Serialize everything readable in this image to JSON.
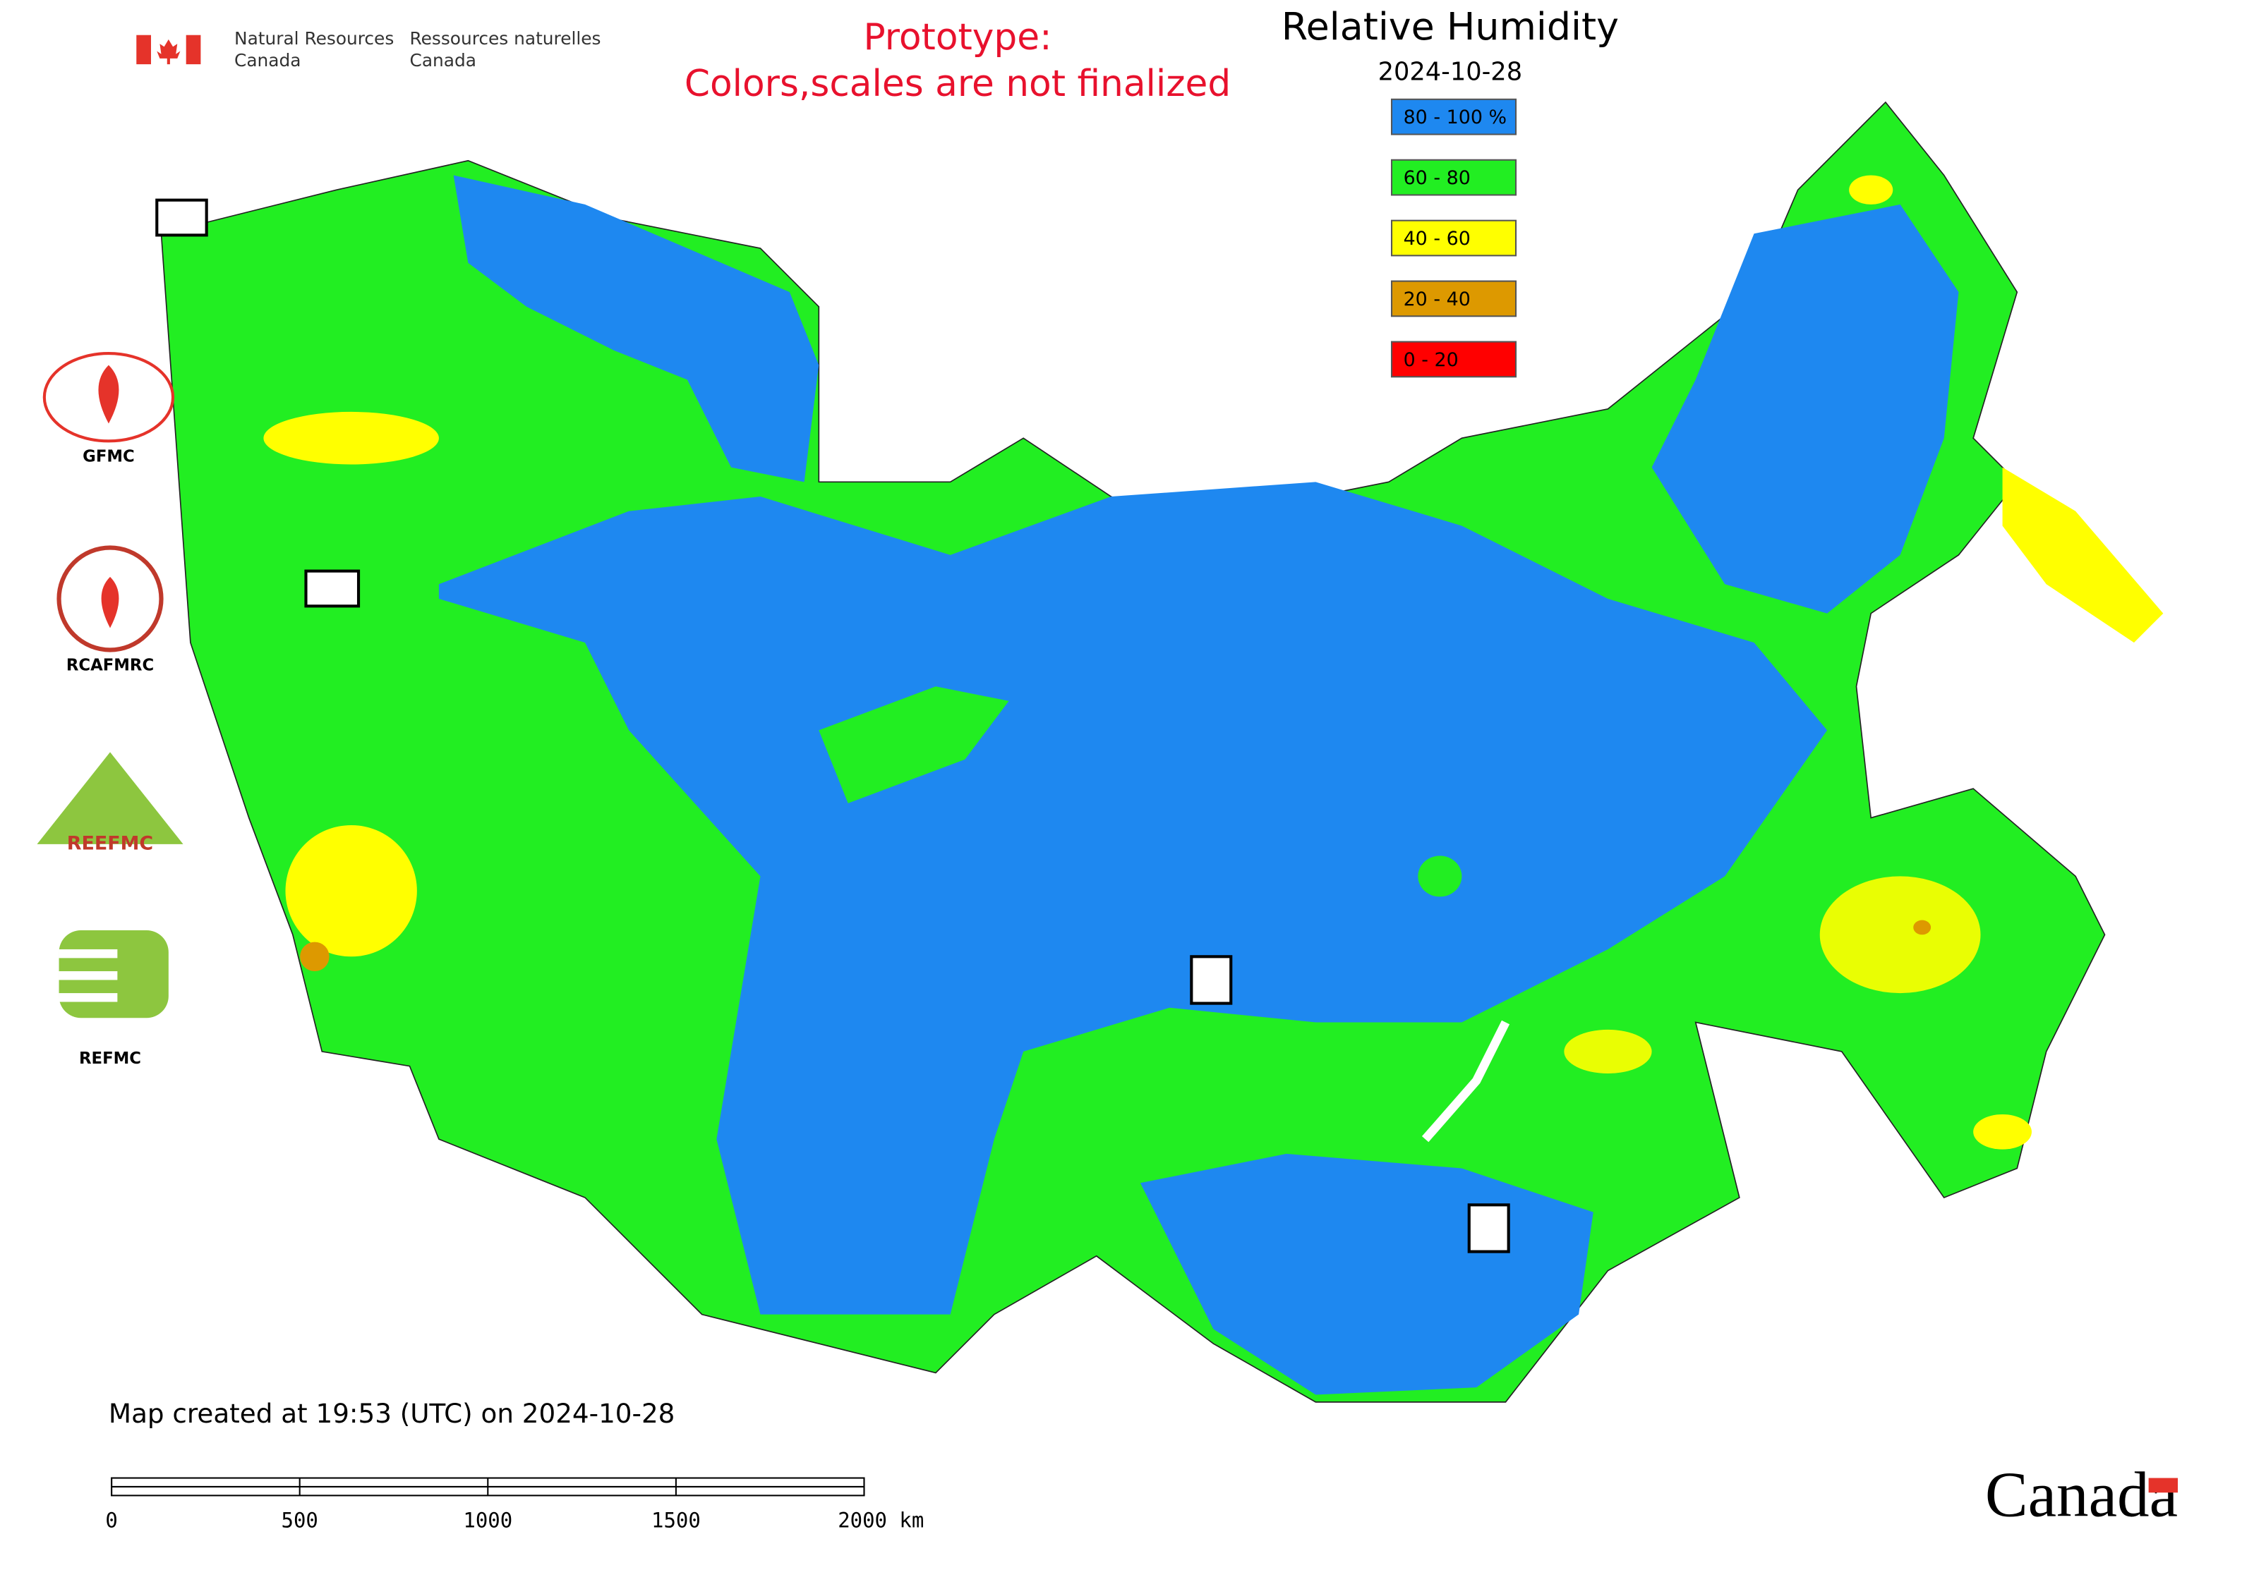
{
  "header": {
    "dept_en_1": "Natural Resources",
    "dept_en_2": "Canada",
    "dept_fr_1": "Ressources naturelles",
    "dept_fr_2": "Canada"
  },
  "notice": [
    "Prototype:",
    "Colors,scales are not finalized"
  ],
  "map": {
    "title": "Relative Humidity",
    "date": "2024-10-28",
    "legend": [
      {
        "label": "80 - 100 %",
        "color": "#1e88f0"
      },
      {
        "label": "60 - 80",
        "color": "#22ee22"
      },
      {
        "label": "40 - 60",
        "color": "#ffff00"
      },
      {
        "label": "20 - 40",
        "color": "#dd9900"
      },
      {
        "label": "0 - 20",
        "color": "#ff0000"
      }
    ]
  },
  "logos": [
    "GFMC",
    "RCAFMRC",
    "REEFMC",
    "REFMC"
  ],
  "footer": {
    "created": "Map created at 19:53 (UTC) on 2024-10-28",
    "scale_labels": [
      "0",
      "500",
      "1000",
      "1500",
      "2000 km"
    ],
    "wordmark": "Canada"
  }
}
